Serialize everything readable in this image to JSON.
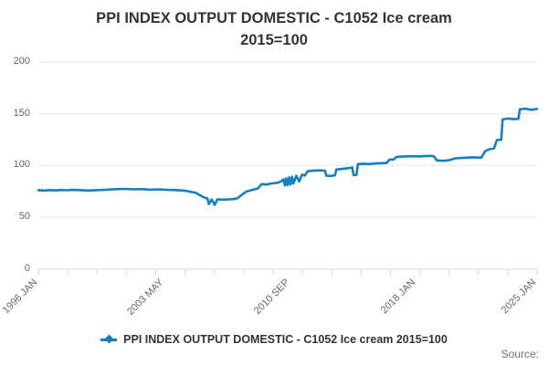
{
  "header": {
    "title_line1": "PPI INDEX OUTPUT DOMESTIC - C1052 Ice cream",
    "title_line2": "2015=100"
  },
  "legend": {
    "label": "PPI INDEX OUTPUT DOMESTIC - C1052 Ice cream 2015=100",
    "marker_icon": "line-with-diamond-icon"
  },
  "footer": {
    "source_label": "Source:"
  },
  "colors": {
    "series_line": "#1380bf",
    "gridline": "#e6e6e6",
    "axis": "#ccd6eb",
    "axis_label_text": "#666666",
    "title_text": "#333333",
    "source_text": "#707070"
  },
  "chart_data": {
    "type": "line",
    "title": "PPI INDEX OUTPUT DOMESTIC - C1052 Ice cream 2015=100",
    "frequency": "monthly",
    "x_start": "1996-01",
    "x_end": "2025-01",
    "ylim": [
      0,
      200
    ],
    "yticks": [
      0,
      50,
      100,
      150,
      200
    ],
    "xticks": [
      {
        "label": "1996 JAN",
        "month": "1996-01"
      },
      {
        "label": "2003 MAY",
        "month": "2003-05"
      },
      {
        "label": "2010 SEP",
        "month": "2010-09"
      },
      {
        "label": "2018 JAN",
        "month": "2018-01"
      },
      {
        "label": "2025 JAN",
        "month": "2025-01"
      }
    ],
    "grid": "horizontal-only",
    "legend_position": "bottom-center",
    "series": [
      {
        "name": "PPI INDEX OUTPUT DOMESTIC - C1052 Ice cream 2015=100",
        "color": "#1380bf",
        "points": [
          [
            "1996-01",
            76
          ],
          [
            "1996-05",
            75.7
          ],
          [
            "1996-09",
            76.1
          ],
          [
            "1997-01",
            75.8
          ],
          [
            "1997-05",
            76.2
          ],
          [
            "1997-09",
            75.9
          ],
          [
            "1998-01",
            76.3
          ],
          [
            "1998-07",
            76
          ],
          [
            "1999-01",
            75.7
          ],
          [
            "1999-07",
            76.1
          ],
          [
            "2000-01",
            76.5
          ],
          [
            "2000-07",
            77
          ],
          [
            "2001-01",
            77.3
          ],
          [
            "2001-07",
            76.8
          ],
          [
            "2002-01",
            77.1
          ],
          [
            "2002-07",
            76.5
          ],
          [
            "2003-01",
            76.8
          ],
          [
            "2003-07",
            76.3
          ],
          [
            "2004-01",
            76.1
          ],
          [
            "2004-07",
            75.6
          ],
          [
            "2004-12",
            74.3
          ],
          [
            "2005-03",
            73.4
          ],
          [
            "2005-06",
            71
          ],
          [
            "2005-09",
            68.8
          ],
          [
            "2005-11",
            68
          ],
          [
            "2005-12",
            62.5
          ],
          [
            "2006-02",
            67
          ],
          [
            "2006-04",
            61.8
          ],
          [
            "2006-06",
            67.2
          ],
          [
            "2006-09",
            66.8
          ],
          [
            "2007-01",
            67
          ],
          [
            "2007-05",
            67.4
          ],
          [
            "2007-08",
            68.2
          ],
          [
            "2007-11",
            71.5
          ],
          [
            "2008-02",
            74.6
          ],
          [
            "2008-06",
            76.2
          ],
          [
            "2008-10",
            77.6
          ],
          [
            "2009-01",
            82
          ],
          [
            "2009-04",
            81.4
          ],
          [
            "2009-08",
            82.6
          ],
          [
            "2009-12",
            83.2
          ],
          [
            "2010-03",
            85
          ],
          [
            "2010-04",
            86.5
          ],
          [
            "2010-05",
            80.5
          ],
          [
            "2010-06",
            87.5
          ],
          [
            "2010-07",
            80.8
          ],
          [
            "2010-08",
            88.5
          ],
          [
            "2010-09",
            81.5
          ],
          [
            "2010-10",
            89
          ],
          [
            "2010-11",
            82.5
          ],
          [
            "2011-01",
            90
          ],
          [
            "2011-03",
            84.5
          ],
          [
            "2011-05",
            91
          ],
          [
            "2011-07",
            90.2
          ],
          [
            "2011-09",
            94.5
          ],
          [
            "2012-01",
            94.8
          ],
          [
            "2012-05",
            95.2
          ],
          [
            "2012-09",
            94.9
          ],
          [
            "2012-10",
            90
          ],
          [
            "2013-01",
            89.8
          ],
          [
            "2013-04",
            90.4
          ],
          [
            "2013-05",
            96
          ],
          [
            "2013-10",
            96.8
          ],
          [
            "2014-02",
            97.5
          ],
          [
            "2014-04",
            98
          ],
          [
            "2014-05",
            90.5
          ],
          [
            "2014-07",
            90.8
          ],
          [
            "2014-08",
            101.3
          ],
          [
            "2014-12",
            101.6
          ],
          [
            "2015-04",
            101.3
          ],
          [
            "2015-08",
            101.9
          ],
          [
            "2015-12",
            102.1
          ],
          [
            "2016-04",
            102.3
          ],
          [
            "2016-06",
            105.5
          ],
          [
            "2016-09",
            105.8
          ],
          [
            "2016-11",
            108.2
          ],
          [
            "2017-03",
            108.5
          ],
          [
            "2017-09",
            108.9
          ],
          [
            "2018-03",
            108.7
          ],
          [
            "2018-09",
            109.2
          ],
          [
            "2019-01",
            108.9
          ],
          [
            "2019-03",
            104.8
          ],
          [
            "2019-08",
            104.5
          ],
          [
            "2019-12",
            105.2
          ],
          [
            "2020-04",
            106.8
          ],
          [
            "2020-10",
            107.4
          ],
          [
            "2021-04",
            107.8
          ],
          [
            "2021-10",
            107.5
          ],
          [
            "2022-01",
            114
          ],
          [
            "2022-04",
            115.8
          ],
          [
            "2022-07",
            116.5
          ],
          [
            "2022-09",
            124.5
          ],
          [
            "2022-12",
            124.8
          ],
          [
            "2023-01",
            144.5
          ],
          [
            "2023-05",
            145.3
          ],
          [
            "2023-09",
            144.7
          ],
          [
            "2023-12",
            145
          ],
          [
            "2024-01",
            154.3
          ],
          [
            "2024-05",
            154.9
          ],
          [
            "2024-09",
            153.8
          ],
          [
            "2025-01",
            154.6
          ]
        ]
      }
    ]
  }
}
